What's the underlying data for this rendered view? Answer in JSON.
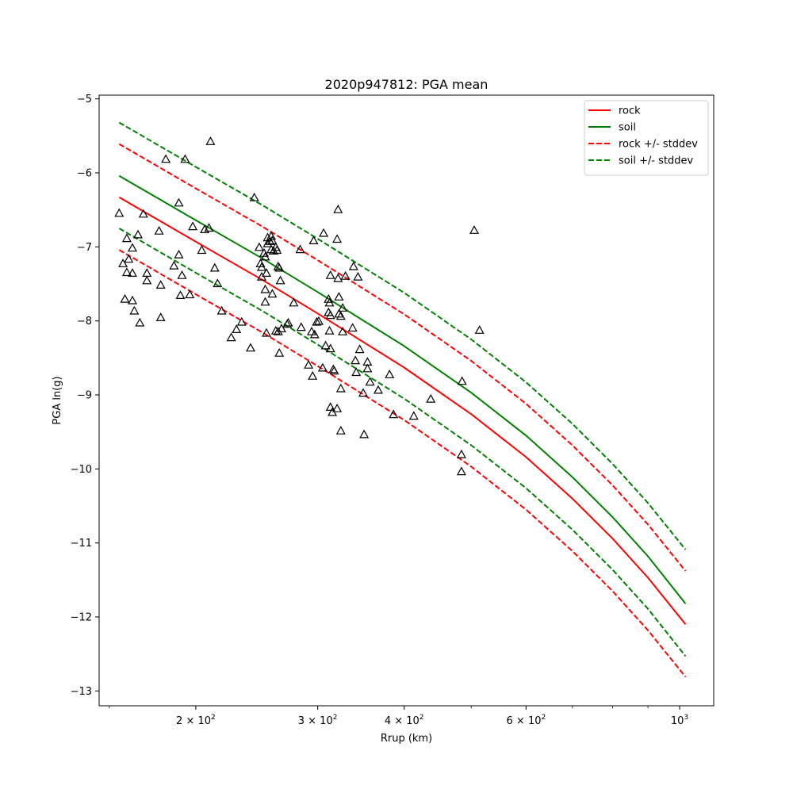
{
  "chart_data": {
    "type": "scatter",
    "title": "2020p947812: PGA mean",
    "xlabel": "Rrup (km)",
    "ylabel": "PGA ln(g)",
    "xscale": "log",
    "xlim": [
      145,
      1120
    ],
    "ylim": [
      -13.2,
      -4.95
    ],
    "x_major_ticks": [
      {
        "value": 200,
        "base": "2 × 10",
        "exp": "2"
      },
      {
        "value": 300,
        "base": "3 × 10",
        "exp": "2"
      },
      {
        "value": 400,
        "base": "4 × 10",
        "exp": "2"
      },
      {
        "value": 600,
        "base": "6 × 10",
        "exp": "2"
      },
      {
        "value": 1000,
        "base": "10",
        "exp": "3"
      }
    ],
    "x_minor_ticks": [
      150,
      500,
      700,
      800,
      900
    ],
    "y_ticks": [
      {
        "value": -5,
        "label": "−5"
      },
      {
        "value": -6,
        "label": "−6"
      },
      {
        "value": -7,
        "label": "−7"
      },
      {
        "value": -8,
        "label": "−8"
      },
      {
        "value": -9,
        "label": "−9"
      },
      {
        "value": -10,
        "label": "−10"
      },
      {
        "value": -11,
        "label": "−11"
      },
      {
        "value": -12,
        "label": "−12"
      },
      {
        "value": -13,
        "label": "−13"
      }
    ],
    "grid": false,
    "legend_position": "top-right",
    "series": [
      {
        "name": "rock",
        "color": "#ff0000",
        "style": "solid",
        "x": [
          155,
          200,
          250,
          300,
          400,
          500,
          600,
          700,
          800,
          900,
          1020
        ],
        "y": [
          -6.33,
          -6.93,
          -7.45,
          -7.9,
          -8.63,
          -9.26,
          -9.84,
          -10.4,
          -10.94,
          -11.47,
          -12.1
        ]
      },
      {
        "name": "soil",
        "color": "#008000",
        "style": "solid",
        "x": [
          155,
          200,
          250,
          300,
          400,
          500,
          600,
          700,
          800,
          900,
          1020
        ],
        "y": [
          -6.04,
          -6.64,
          -7.16,
          -7.61,
          -8.34,
          -8.97,
          -9.55,
          -10.11,
          -10.65,
          -11.18,
          -11.82
        ]
      },
      {
        "name": "rock +/- stddev",
        "color": "#ff0000",
        "style": "dashed",
        "x": [
          155,
          200,
          250,
          300,
          400,
          500,
          600,
          700,
          800,
          900,
          1020
        ],
        "y": [
          -5.61,
          -6.21,
          -6.73,
          -7.18,
          -7.91,
          -8.54,
          -9.12,
          -9.68,
          -10.22,
          -10.75,
          -11.38
        ],
        "y2": [
          -7.04,
          -7.64,
          -8.16,
          -8.61,
          -9.34,
          -9.97,
          -10.55,
          -11.11,
          -11.65,
          -12.18,
          -12.81
        ]
      },
      {
        "name": "soil +/- stddev",
        "color": "#008000",
        "style": "dashed",
        "x": [
          155,
          200,
          250,
          300,
          400,
          500,
          600,
          700,
          800,
          900,
          1020
        ],
        "y": [
          -5.32,
          -5.92,
          -6.44,
          -6.89,
          -7.62,
          -8.25,
          -8.83,
          -9.39,
          -9.93,
          -10.46,
          -11.09
        ],
        "y2": [
          -6.75,
          -7.35,
          -7.87,
          -8.32,
          -9.05,
          -9.68,
          -10.26,
          -10.82,
          -11.36,
          -11.89,
          -12.53
        ]
      }
    ],
    "points": [
      [
        155,
        -6.55
      ],
      [
        157,
        -7.23
      ],
      [
        159,
        -6.89
      ],
      [
        160,
        -7.17
      ],
      [
        159,
        -7.35
      ],
      [
        158,
        -7.71
      ],
      [
        162,
        -7.02
      ],
      [
        162,
        -7.36
      ],
      [
        162,
        -7.73
      ],
      [
        163,
        -7.87
      ],
      [
        165,
        -6.84
      ],
      [
        166,
        -8.03
      ],
      [
        168,
        -6.56
      ],
      [
        170,
        -7.36
      ],
      [
        170,
        -7.46
      ],
      [
        177,
        -6.79
      ],
      [
        178,
        -7.52
      ],
      [
        178,
        -7.96
      ],
      [
        181,
        -5.82
      ],
      [
        186,
        -7.26
      ],
      [
        189,
        -6.41
      ],
      [
        189,
        -7.11
      ],
      [
        191,
        -7.39
      ],
      [
        190,
        -7.66
      ],
      [
        193,
        -5.82
      ],
      [
        196,
        -7.65
      ],
      [
        198,
        -6.73
      ],
      [
        204,
        -7.05
      ],
      [
        206,
        -6.77
      ],
      [
        209,
        -6.75
      ],
      [
        210,
        -5.58
      ],
      [
        213,
        -7.29
      ],
      [
        215,
        -7.5
      ],
      [
        218,
        -7.87
      ],
      [
        225,
        -8.23
      ],
      [
        229,
        -8.12
      ],
      [
        233,
        -8.02
      ],
      [
        240,
        -8.37
      ],
      [
        243,
        -6.34
      ],
      [
        247,
        -7.01
      ],
      [
        248,
        -7.23
      ],
      [
        249,
        -7.28
      ],
      [
        249,
        -7.41
      ],
      [
        251,
        -7.09
      ],
      [
        252,
        -7.14
      ],
      [
        253,
        -7.36
      ],
      [
        254,
        -6.96
      ],
      [
        254,
        -6.88
      ],
      [
        256,
        -6.93
      ],
      [
        257,
        -6.86
      ],
      [
        257,
        -7.04
      ],
      [
        258,
        -6.92
      ],
      [
        259,
        -7.06
      ],
      [
        261,
        -7.01
      ],
      [
        262,
        -7.05
      ],
      [
        263,
        -7.27
      ],
      [
        264,
        -7.29
      ],
      [
        265,
        -7.46
      ],
      [
        252,
        -7.58
      ],
      [
        252,
        -7.75
      ],
      [
        258,
        -7.64
      ],
      [
        253,
        -8.17
      ],
      [
        261,
        -8.14
      ],
      [
        263,
        -8.15
      ],
      [
        264,
        -8.44
      ],
      [
        266,
        -8.11
      ],
      [
        271,
        -8.05
      ],
      [
        272,
        -8.03
      ],
      [
        277,
        -7.76
      ],
      [
        283,
        -7.04
      ],
      [
        284,
        -8.09
      ],
      [
        291,
        -8.6
      ],
      [
        294,
        -8.15
      ],
      [
        295,
        -8.75
      ],
      [
        296,
        -6.92
      ],
      [
        297,
        -8.19
      ],
      [
        299,
        -8.02
      ],
      [
        301,
        -8.01
      ],
      [
        305,
        -8.64
      ],
      [
        306,
        -6.82
      ],
      [
        308,
        -8.34
      ],
      [
        311,
        -7.71
      ],
      [
        312,
        -7.76
      ],
      [
        311,
        -7.89
      ],
      [
        313,
        -7.39
      ],
      [
        313,
        -7.93
      ],
      [
        312,
        -8.14
      ],
      [
        313,
        -8.38
      ],
      [
        313,
        -9.17
      ],
      [
        315,
        -9.24
      ],
      [
        316,
        -8.66
      ],
      [
        317,
        -8.68
      ],
      [
        320,
        -6.9
      ],
      [
        321,
        -7.43
      ],
      [
        320,
        -9.19
      ],
      [
        321,
        -6.5
      ],
      [
        322,
        -7.68
      ],
      [
        322,
        -7.91
      ],
      [
        324,
        -7.94
      ],
      [
        324,
        -8.92
      ],
      [
        324,
        -9.49
      ],
      [
        326,
        -8.15
      ],
      [
        326,
        -7.83
      ],
      [
        329,
        -7.4
      ],
      [
        337,
        -8.1
      ],
      [
        338,
        -7.27
      ],
      [
        340,
        -8.54
      ],
      [
        341,
        -8.7
      ],
      [
        343,
        -7.41
      ],
      [
        345,
        -8.39
      ],
      [
        349,
        -8.98
      ],
      [
        350,
        -9.54
      ],
      [
        354,
        -8.56
      ],
      [
        354,
        -8.65
      ],
      [
        357,
        -8.83
      ],
      [
        367,
        -8.94
      ],
      [
        381,
        -8.73
      ],
      [
        386,
        -9.27
      ],
      [
        413,
        -9.29
      ],
      [
        437,
        -9.06
      ],
      [
        485,
        -8.82
      ],
      [
        484,
        -9.81
      ],
      [
        484,
        -10.04
      ],
      [
        505,
        -6.78
      ],
      [
        514,
        -8.13
      ]
    ],
    "legend": [
      {
        "label": "rock",
        "color": "#ff0000",
        "style": "solid"
      },
      {
        "label": "soil",
        "color": "#008000",
        "style": "solid"
      },
      {
        "label": "rock +/- stddev",
        "color": "#ff0000",
        "style": "dashed"
      },
      {
        "label": "soil +/- stddev",
        "color": "#008000",
        "style": "dashed"
      }
    ]
  }
}
